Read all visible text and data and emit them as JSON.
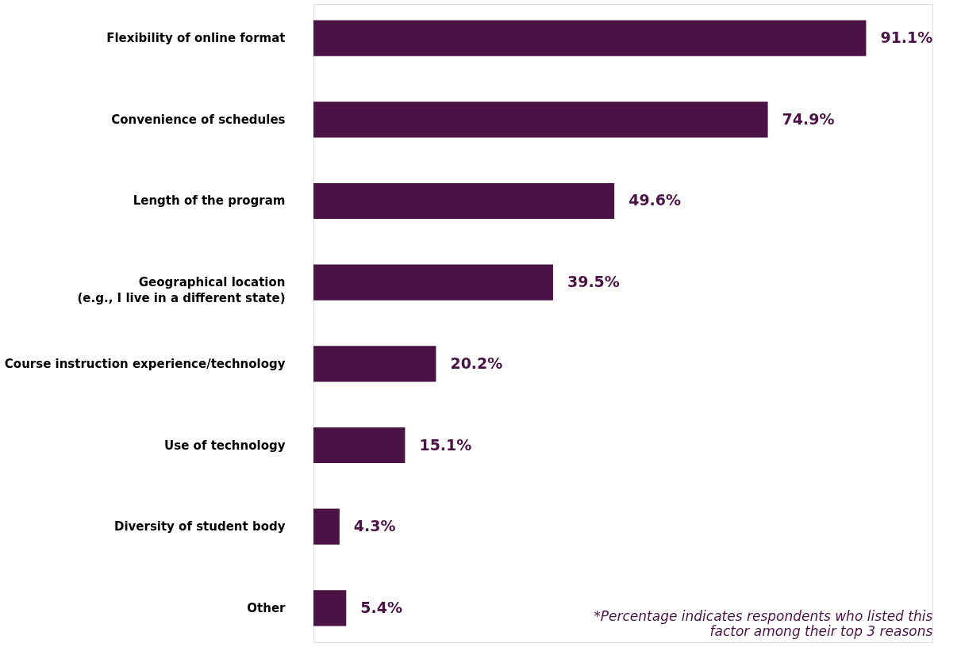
{
  "chart_data": {
    "type": "bar",
    "orientation": "horizontal",
    "categories": [
      "Flexibility of online format",
      "Convenience of schedules",
      "Length of the program",
      "Geographical location\n(e.g., I live in a different state)",
      "Course instruction experience/technology",
      "Use of technology",
      "Diversity of student body",
      "Other"
    ],
    "values": [
      91.1,
      74.9,
      49.6,
      39.5,
      20.2,
      15.1,
      4.3,
      5.4
    ],
    "value_labels": [
      "91.1%",
      "74.9%",
      "49.6%",
      "39.5%",
      "20.2%",
      "15.1%",
      "4.3%",
      "5.4%"
    ],
    "color": "#4a1245",
    "annotations": [
      "*Percentage indicates respondents who listed this\nfactor among their top 3 reasons"
    ]
  }
}
